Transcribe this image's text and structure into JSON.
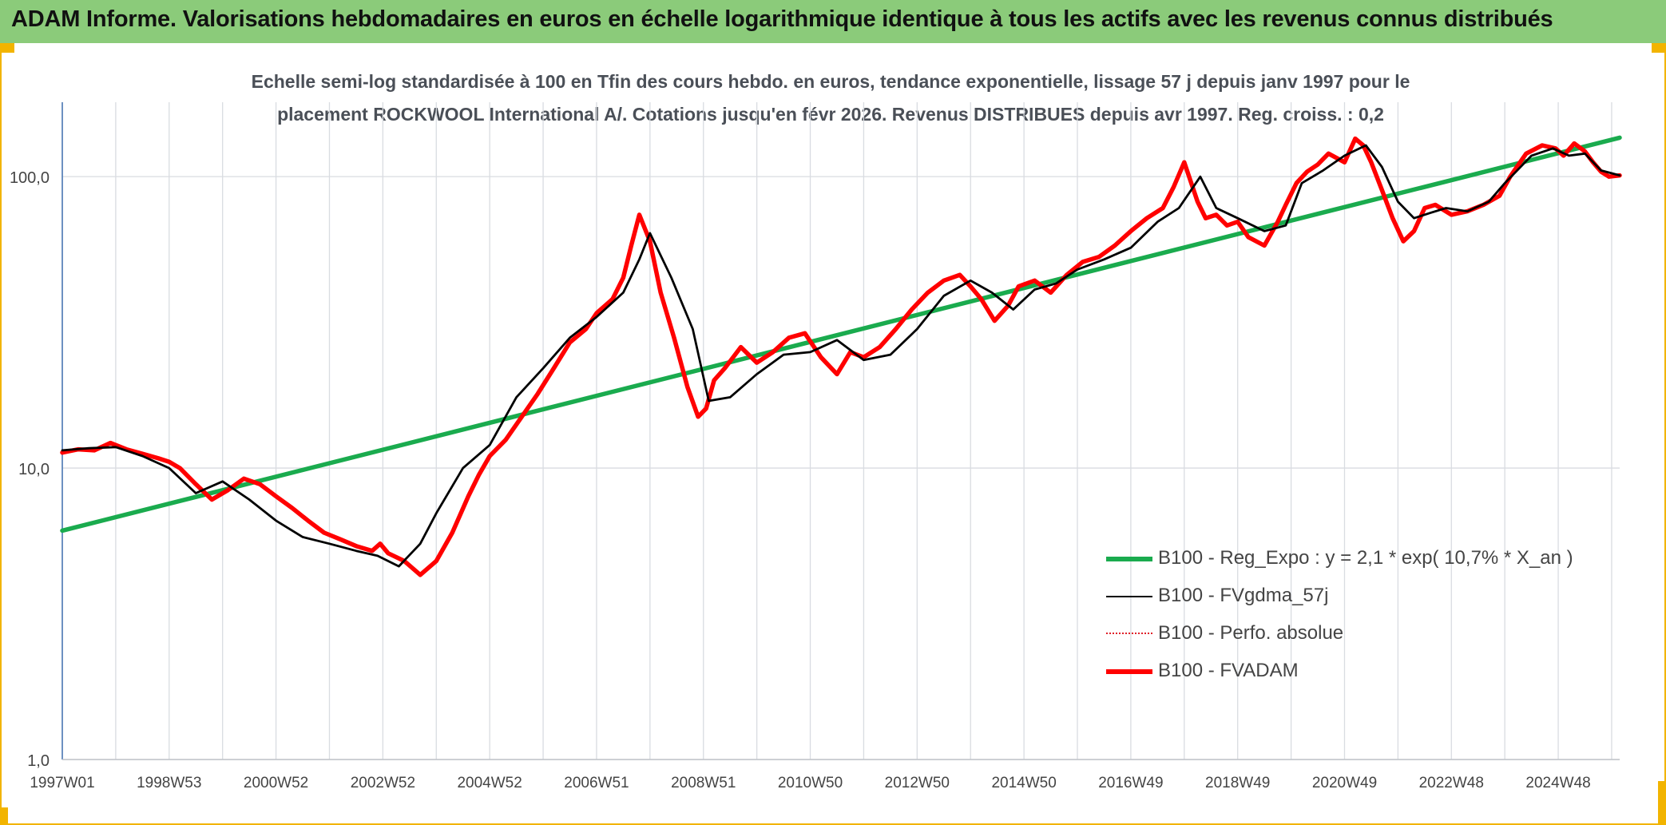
{
  "header": {
    "title": "ADAM Informe. Valorisations hebdomadaires en euros en échelle logarithmique identique à tous les actifs avec les revenus connus distribués",
    "background": "#8bcb7a"
  },
  "chart_data": {
    "type": "line",
    "title_line1": "Echelle semi-log standardisée à 100 en Tfin des cours hebdo. en euros, tendance exponentielle, lissage 57 j depuis janv 1997 pour le",
    "title_line2": "placement ROCKWOOL International A/. Cotations jusqu'en févr 2026. Revenus DISTRIBUES depuis avr 1997. Reg. croiss. : 0,2",
    "y_scale": "log",
    "ylim": [
      1,
      180
    ],
    "y_ticks": [
      1,
      10,
      100
    ],
    "y_tick_labels": [
      "1,0",
      "10,0",
      "100,0"
    ],
    "xlim": [
      1997.0,
      2026.15
    ],
    "x_ticks": [
      1997.0,
      1999.0,
      2001.0,
      2003.0,
      2005.0,
      2007.0,
      2009.0,
      2011.0,
      2013.0,
      2015.0,
      2017.0,
      2019.0,
      2021.0,
      2023.0,
      2025.0
    ],
    "x_tick_labels": [
      "1997W01",
      "1998W53",
      "2000W52",
      "2002W52",
      "2004W52",
      "2006W51",
      "2008W51",
      "2010W50",
      "2012W50",
      "2014W50",
      "2016W49",
      "2018W49",
      "2020W49",
      "2022W48",
      "2024W48"
    ],
    "grid": "vertical",
    "legend_position": "lower-right",
    "series": [
      {
        "name": "B100 - Reg_Expo : y = 2,1 * exp( 10,7% *  X_an )",
        "color": "#1aab4e",
        "style": "thick",
        "x": [
          1997.0,
          2026.15
        ],
        "y": [
          6.1,
          136
        ]
      },
      {
        "name": "B100 - FVgdma_57j",
        "color": "#000000",
        "style": "thin",
        "x": [
          1997.0,
          1997.5,
          1998.0,
          1998.5,
          1999.0,
          1999.5,
          2000.0,
          2000.5,
          2001.0,
          2001.5,
          2002.0,
          2002.5,
          2002.9,
          2003.3,
          2003.7,
          2004.0,
          2004.5,
          2005.0,
          2005.5,
          2006.0,
          2006.5,
          2007.0,
          2007.5,
          2007.8,
          2008.0,
          2008.4,
          2008.8,
          2009.1,
          2009.5,
          2010.0,
          2010.5,
          2011.0,
          2011.5,
          2012.0,
          2012.5,
          2013.0,
          2013.5,
          2014.0,
          2014.4,
          2014.8,
          2015.2,
          2015.6,
          2016.0,
          2016.5,
          2017.0,
          2017.5,
          2017.9,
          2018.3,
          2018.6,
          2019.0,
          2019.5,
          2019.9,
          2020.2,
          2020.6,
          2021.0,
          2021.4,
          2021.7,
          2022.0,
          2022.3,
          2022.6,
          2022.9,
          2023.3,
          2023.7,
          2024.0,
          2024.5,
          2024.9,
          2025.2,
          2025.5,
          2025.8,
          2026.15
        ],
        "y": [
          11.5,
          11.7,
          11.8,
          11.0,
          10.0,
          8.2,
          9.0,
          7.8,
          6.6,
          5.8,
          5.5,
          5.2,
          5.0,
          4.6,
          5.5,
          7.0,
          10.0,
          12.0,
          17.5,
          22.0,
          28.0,
          33.0,
          40.0,
          52.0,
          64.0,
          45.0,
          30.0,
          17.0,
          17.5,
          21.0,
          24.5,
          25.0,
          27.5,
          23.5,
          24.5,
          30.0,
          39.0,
          44.0,
          40.0,
          35.0,
          41.0,
          43.0,
          48.0,
          52.0,
          57.0,
          70.0,
          78.0,
          100.0,
          78.0,
          72.0,
          65.0,
          68.0,
          95.0,
          105.0,
          118.0,
          128.0,
          108.0,
          82.0,
          72.0,
          75.0,
          78.0,
          76.0,
          82.0,
          95.0,
          118.0,
          125.0,
          118.0,
          120.0,
          105.0,
          101.0
        ]
      },
      {
        "name": "B100 - Perfo. absolue",
        "color": "#e0202a",
        "style": "dotted",
        "x": [],
        "y": []
      },
      {
        "name": "B100 - FVADAM",
        "color": "#ff0000",
        "style": "thick",
        "x": [
          1997.0,
          1997.3,
          1997.6,
          1997.9,
          1998.2,
          1998.5,
          1998.8,
          1999.0,
          1999.2,
          1999.5,
          1999.8,
          2000.1,
          2000.4,
          2000.7,
          2001.0,
          2001.3,
          2001.6,
          2001.9,
          2002.2,
          2002.5,
          2002.8,
          2002.95,
          2003.1,
          2003.4,
          2003.7,
          2004.0,
          2004.3,
          2004.6,
          2004.8,
          2005.0,
          2005.3,
          2005.6,
          2005.9,
          2006.2,
          2006.5,
          2006.8,
          2007.0,
          2007.3,
          2007.5,
          2007.65,
          2007.8,
          2008.0,
          2008.2,
          2008.45,
          2008.7,
          2008.9,
          2009.05,
          2009.2,
          2009.4,
          2009.7,
          2010.0,
          2010.3,
          2010.6,
          2010.9,
          2011.2,
          2011.5,
          2011.75,
          2012.0,
          2012.3,
          2012.6,
          2012.9,
          2013.2,
          2013.5,
          2013.8,
          2014.0,
          2014.2,
          2014.45,
          2014.7,
          2014.9,
          2015.2,
          2015.5,
          2015.8,
          2016.1,
          2016.4,
          2016.7,
          2017.0,
          2017.3,
          2017.6,
          2017.8,
          2018.0,
          2018.25,
          2018.4,
          2018.6,
          2018.8,
          2019.0,
          2019.2,
          2019.5,
          2019.75,
          2019.9,
          2020.1,
          2020.3,
          2020.5,
          2020.7,
          2021.0,
          2021.2,
          2021.35,
          2021.5,
          2021.7,
          2021.9,
          2022.1,
          2022.3,
          2022.5,
          2022.7,
          2023.0,
          2023.3,
          2023.6,
          2023.9,
          2024.1,
          2024.4,
          2024.7,
          2024.95,
          2025.1,
          2025.3,
          2025.5,
          2025.65,
          2025.8,
          2025.95,
          2026.15
        ],
        "y": [
          11.3,
          11.6,
          11.5,
          12.2,
          11.6,
          11.2,
          10.8,
          10.5,
          10.0,
          8.8,
          7.8,
          8.4,
          9.2,
          8.8,
          8.0,
          7.3,
          6.6,
          6.0,
          5.7,
          5.4,
          5.2,
          5.5,
          5.1,
          4.8,
          4.3,
          4.8,
          6.0,
          8.0,
          9.5,
          11.0,
          12.5,
          15.0,
          18.0,
          22.0,
          27.0,
          30.0,
          34.0,
          38.0,
          45.0,
          58.0,
          74.0,
          60.0,
          40.0,
          28.0,
          19.0,
          15.0,
          16.0,
          20.0,
          22.0,
          26.0,
          23.0,
          25.0,
          28.0,
          29.0,
          24.0,
          21.0,
          25.0,
          24.0,
          26.0,
          30.0,
          35.0,
          40.0,
          44.0,
          46.0,
          42.0,
          38.0,
          32.0,
          36.0,
          42.0,
          44.0,
          40.0,
          46.0,
          51.0,
          53.0,
          58.0,
          65.0,
          72.0,
          78.0,
          92.0,
          112.0,
          82.0,
          72.0,
          74.0,
          68.0,
          70.0,
          62.0,
          58.0,
          70.0,
          80.0,
          95.0,
          104.0,
          110.0,
          120.0,
          112.0,
          135.0,
          128.0,
          112.0,
          90.0,
          72.0,
          60.0,
          65.0,
          78.0,
          80.0,
          74.0,
          76.0,
          80.0,
          86.0,
          100.0,
          120.0,
          128.0,
          125.0,
          118.0,
          130.0,
          122.0,
          112.0,
          104.0,
          100.0,
          101.0
        ]
      }
    ]
  }
}
